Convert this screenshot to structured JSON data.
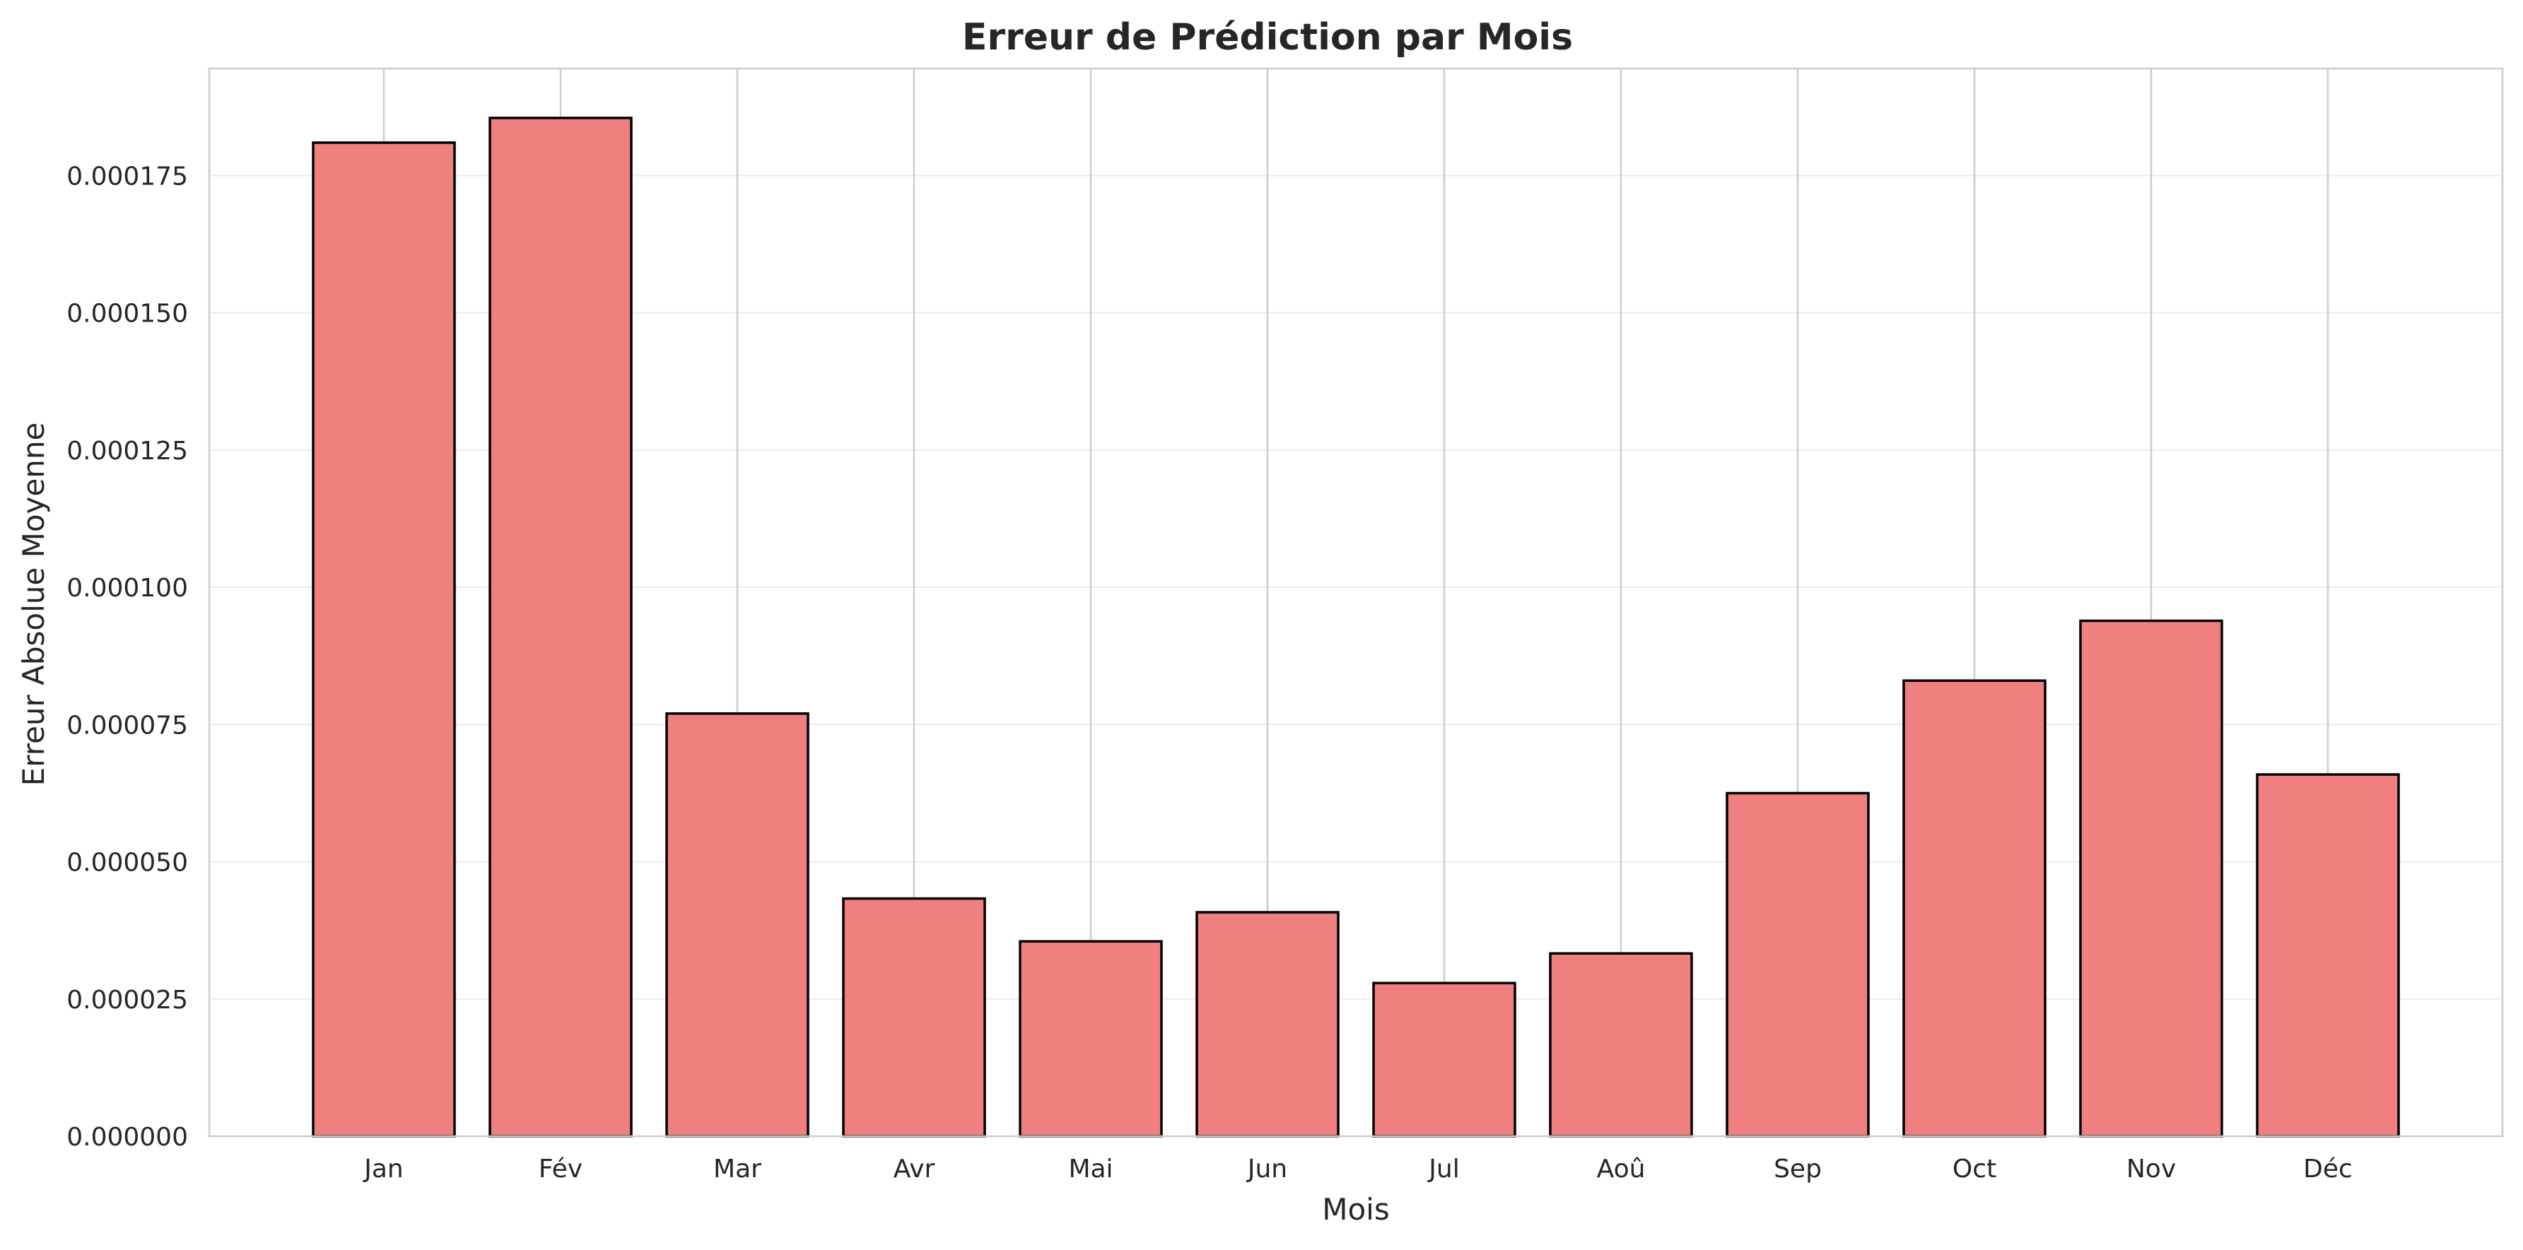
{
  "chart_data": {
    "type": "bar",
    "title": "Erreur de Prédiction par Mois",
    "xlabel": "Mois",
    "ylabel": "Erreur Absolue Moyenne",
    "categories": [
      "Jan",
      "Fév",
      "Mar",
      "Avr",
      "Mai",
      "Jun",
      "Jul",
      "Aoû",
      "Sep",
      "Oct",
      "Nov",
      "Déc"
    ],
    "values": [
      0.000181,
      0.0001855,
      7.7e-05,
      4.33e-05,
      3.55e-05,
      4.08e-05,
      2.79e-05,
      3.33e-05,
      6.25e-05,
      8.3e-05,
      9.39e-05,
      6.59e-05
    ],
    "ylim": [
      0,
      0.0001945
    ],
    "yticks": [
      "0.000000",
      "0.000025",
      "0.000050",
      "0.000075",
      "0.000100",
      "0.000125",
      "0.000150",
      "0.000175"
    ],
    "ytick_values": [
      0,
      2.5e-05,
      5e-05,
      7.5e-05,
      0.0001,
      0.000125,
      0.00015,
      0.000175
    ],
    "grid": true,
    "bar_color": "#f08080",
    "bar_edge_color": "#000000"
  }
}
